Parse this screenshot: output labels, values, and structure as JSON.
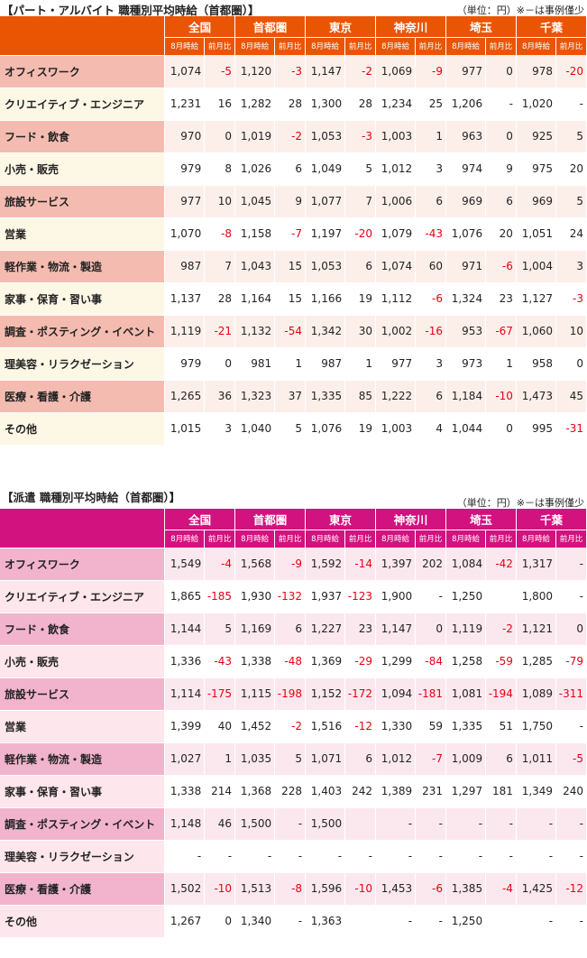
{
  "part": {
    "title": "【パート・アルバイト 職種別平均時給（首都圏）】",
    "unit_note": "（単位：円）※－は事例僅少",
    "regions": [
      "全国",
      "首都圏",
      "東京",
      "神奈川",
      "埼玉",
      "千葉"
    ],
    "sub_headers": [
      "8月時給",
      "前月比"
    ],
    "rows": [
      {
        "category": "オフィスワーク",
        "cells": [
          "1,074",
          "-5",
          "1,120",
          "-3",
          "1,147",
          "-2",
          "1,069",
          "-9",
          "977",
          "0",
          "978",
          "-20"
        ]
      },
      {
        "category": "クリエイティブ・エンジニア",
        "cells": [
          "1,231",
          "16",
          "1,282",
          "28",
          "1,300",
          "28",
          "1,234",
          "25",
          "1,206",
          "-",
          "1,020",
          "-"
        ]
      },
      {
        "category": "フード・飲食",
        "cells": [
          "970",
          "0",
          "1,019",
          "-2",
          "1,053",
          "-3",
          "1,003",
          "1",
          "963",
          "0",
          "925",
          "5"
        ]
      },
      {
        "category": "小売・販売",
        "cells": [
          "979",
          "8",
          "1,026",
          "6",
          "1,049",
          "5",
          "1,012",
          "3",
          "974",
          "9",
          "975",
          "20"
        ]
      },
      {
        "category": "旅設サービス",
        "cells": [
          "977",
          "10",
          "1,045",
          "9",
          "1,077",
          "7",
          "1,006",
          "6",
          "969",
          "6",
          "969",
          "5"
        ]
      },
      {
        "category": "営業",
        "cells": [
          "1,070",
          "-8",
          "1,158",
          "-7",
          "1,197",
          "-20",
          "1,079",
          "-43",
          "1,076",
          "20",
          "1,051",
          "24"
        ]
      },
      {
        "category": "軽作業・物流・製造",
        "cells": [
          "987",
          "7",
          "1,043",
          "15",
          "1,053",
          "6",
          "1,074",
          "60",
          "971",
          "-6",
          "1,004",
          "3"
        ]
      },
      {
        "category": "家事・保育・習い事",
        "cells": [
          "1,137",
          "28",
          "1,164",
          "15",
          "1,166",
          "19",
          "1,112",
          "-6",
          "1,324",
          "23",
          "1,127",
          "-3"
        ]
      },
      {
        "category": "調査・ポスティング・イベント",
        "cells": [
          "1,119",
          "-21",
          "1,132",
          "-54",
          "1,342",
          "30",
          "1,002",
          "-16",
          "953",
          "-67",
          "1,060",
          "10"
        ]
      },
      {
        "category": "理美容・リラクゼーション",
        "cells": [
          "979",
          "0",
          "981",
          "1",
          "987",
          "1",
          "977",
          "3",
          "973",
          "1",
          "958",
          "0"
        ]
      },
      {
        "category": "医療・看護・介護",
        "cells": [
          "1,265",
          "36",
          "1,323",
          "37",
          "1,335",
          "85",
          "1,222",
          "6",
          "1,184",
          "-10",
          "1,473",
          "45"
        ]
      },
      {
        "category": "その他",
        "cells": [
          "1,015",
          "3",
          "1,040",
          "5",
          "1,076",
          "19",
          "1,003",
          "4",
          "1,044",
          "0",
          "995",
          "-31"
        ]
      }
    ]
  },
  "haken": {
    "title": "【派遣 職種別平均時給（首都圏）】",
    "unit_note": "（単位：円）※－は事例僅少",
    "regions": [
      "全国",
      "首都圏",
      "東京",
      "神奈川",
      "埼玉",
      "千葉"
    ],
    "sub_headers": [
      "8月時給",
      "前月比"
    ],
    "rows": [
      {
        "category": "オフィスワーク",
        "cells": [
          "1,549",
          "-4",
          "1,568",
          "-9",
          "1,592",
          "-14",
          "1,397",
          "202",
          "1,084",
          "-42",
          "1,317",
          "-"
        ]
      },
      {
        "category": "クリエイティブ・エンジニア",
        "cells": [
          "1,865",
          "-185",
          "1,930",
          "-132",
          "1,937",
          "-123",
          "1,900",
          "-",
          "1,250",
          "",
          "1,800",
          "-"
        ]
      },
      {
        "category": "フード・飲食",
        "cells": [
          "1,144",
          "5",
          "1,169",
          "6",
          "1,227",
          "23",
          "1,147",
          "0",
          "1,119",
          "-2",
          "1,121",
          "0"
        ]
      },
      {
        "category": "小売・販売",
        "cells": [
          "1,336",
          "-43",
          "1,338",
          "-48",
          "1,369",
          "-29",
          "1,299",
          "-84",
          "1,258",
          "-59",
          "1,285",
          "-79"
        ]
      },
      {
        "category": "旅設サービス",
        "cells": [
          "1,114",
          "-175",
          "1,115",
          "-198",
          "1,152",
          "-172",
          "1,094",
          "-181",
          "1,081",
          "-194",
          "1,089",
          "-311"
        ]
      },
      {
        "category": "営業",
        "cells": [
          "1,399",
          "40",
          "1,452",
          "-2",
          "1,516",
          "-12",
          "1,330",
          "59",
          "1,335",
          "51",
          "1,750",
          "-"
        ]
      },
      {
        "category": "軽作業・物流・製造",
        "cells": [
          "1,027",
          "1",
          "1,035",
          "5",
          "1,071",
          "6",
          "1,012",
          "-7",
          "1,009",
          "6",
          "1,011",
          "-5"
        ]
      },
      {
        "category": "家事・保育・習い事",
        "cells": [
          "1,338",
          "214",
          "1,368",
          "228",
          "1,403",
          "242",
          "1,389",
          "231",
          "1,297",
          "181",
          "1,349",
          "240"
        ]
      },
      {
        "category": "調査・ポスティング・イベント",
        "cells": [
          "1,148",
          "46",
          "1,500",
          "-",
          "1,500",
          "",
          "-",
          "-",
          "-",
          "-",
          "-",
          "-"
        ]
      },
      {
        "category": "理美容・リラクゼーション",
        "cells": [
          "-",
          "-",
          "-",
          "-",
          "-",
          "-",
          "-",
          "-",
          "-",
          "-",
          "-",
          "-"
        ]
      },
      {
        "category": "医療・看護・介護",
        "cells": [
          "1,502",
          "-10",
          "1,513",
          "-8",
          "1,596",
          "-10",
          "1,453",
          "-6",
          "1,385",
          "-4",
          "1,425",
          "-12"
        ]
      },
      {
        "category": "その他",
        "cells": [
          "1,267",
          "0",
          "1,340",
          "-",
          "1,363",
          "",
          "-",
          "-",
          "1,250",
          "",
          "-",
          "-"
        ]
      }
    ]
  }
}
